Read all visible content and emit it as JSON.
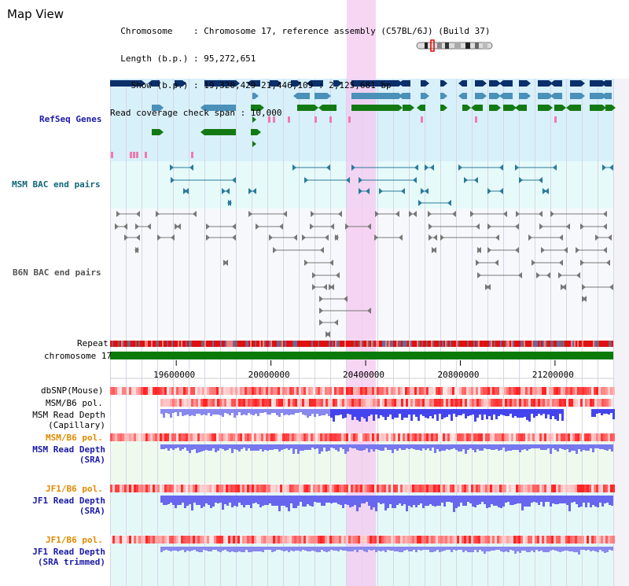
{
  "header": {
    "title": "Map View",
    "info_lines": [
      "  Chromosome    : Chromosome 17, reference assembly (C57BL/6J) (Build 37)",
      "  Length (b.p.) : 95,272,651",
      "    Show (b.p.) : 19,320,429-21,446,109 : 2,125,681 bp",
      "Read coverage check span : 10,000"
    ]
  },
  "view": {
    "start": 19320429,
    "end": 21446109,
    "highlight": [
      20320000,
      20380000
    ]
  },
  "axis": {
    "ticks": [
      "19600000",
      "20000000",
      "20400000",
      "20800000",
      "21200000"
    ],
    "tick_values": [
      19600000,
      20000000,
      20400000,
      20800000,
      21200000
    ]
  },
  "tracks": {
    "refseq": "RefSeq Genes",
    "msm_bac": "MSM BAC end pairs",
    "b6n_bac": "B6N BAC end pairs",
    "repeat": "Repeat",
    "chromosome": "chromosome 17",
    "dbsnp": "dbSNP(Mouse)",
    "msm_pol": "MSM/B6 pol.",
    "msm_cap_1": "MSM Read Depth",
    "msm_cap_2": "(Capillary)",
    "msm_pol2": "MSM/B6 pol.",
    "msm_sra_1": "MSM Read Depth",
    "msm_sra_2": "(SRA)",
    "jf1_pol": "JF1/B6 pol.",
    "jf1_sra_1": "JF1 Read Depth",
    "jf1_sra_2": "(SRA)",
    "jf1_pol2": "JF1/B6 pol.",
    "jf1_trim_1": "JF1 Read Depth",
    "jf1_trim_2": "(SRA trimmed)"
  },
  "colors": {
    "refseq_bg": "#d8f0fa",
    "bac_bg": "#e6fafa",
    "highlight": "#f4c8f0",
    "gene_navy": "#0a2f6a",
    "gene_blue": "#4a90b8",
    "gene_green": "#137a13",
    "pink": "#f07ab0",
    "chrom_green": "#0a7a0a",
    "depth_blue": "#5555ee"
  }
}
